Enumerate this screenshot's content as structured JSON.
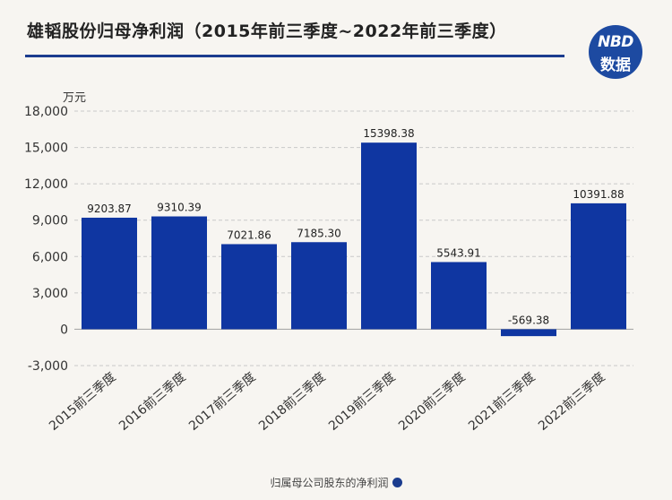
{
  "header": {
    "title": "雄韬股份归母净利润（2015年前三季度~2022年前三季度）",
    "logo_line1": "NBD",
    "logo_line2": "数据"
  },
  "colors": {
    "bar": "#0f36a1",
    "accent": "#1b3c8e"
  },
  "chart_data": {
    "type": "bar",
    "title": "雄韬股份归母净利润（2015年前三季度~2022年前三季度）",
    "ylabel": "万元",
    "xlabel": "",
    "ylim": [
      -3000,
      18000
    ],
    "yticks": [
      -3000,
      0,
      3000,
      6000,
      9000,
      12000,
      15000,
      18000
    ],
    "ytick_labels": [
      "-3,000",
      "0",
      "3,000",
      "6,000",
      "9,000",
      "12,000",
      "15,000",
      "18,000"
    ],
    "grid": true,
    "legend_position": "bottom",
    "categories": [
      "2015前三季度",
      "2016前三季度",
      "2017前三季度",
      "2018前三季度",
      "2019前三季度",
      "2020前三季度",
      "2021前三季度",
      "2022前三季度"
    ],
    "series": [
      {
        "name": "归属母公司股东的净利润",
        "values": [
          9203.87,
          9310.39,
          7021.86,
          7185.3,
          15398.38,
          5543.91,
          -569.38,
          10391.88
        ],
        "labels": [
          "9203.87",
          "9310.39",
          "7021.86",
          "7185.30",
          "15398.38",
          "5543.91",
          "-569.38",
          "10391.88"
        ]
      }
    ]
  }
}
